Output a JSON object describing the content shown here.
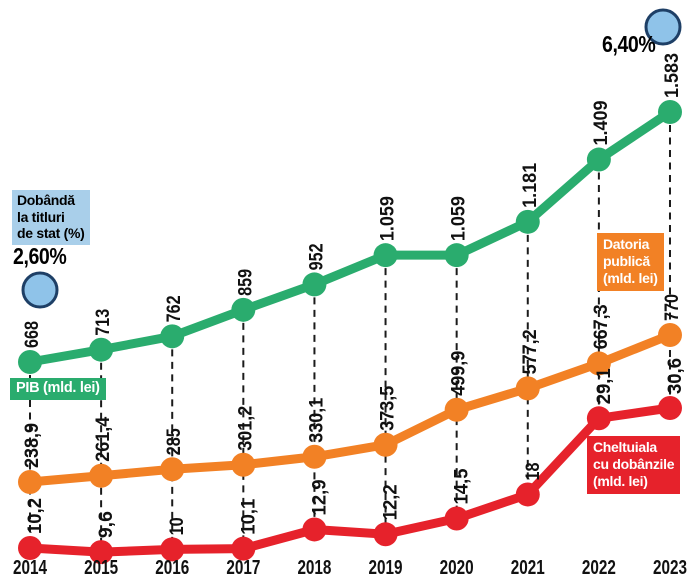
{
  "chart_data": {
    "type": "line",
    "title": "",
    "categories": [
      "2014",
      "2015",
      "2016",
      "2017",
      "2018",
      "2019",
      "2020",
      "2021",
      "2022",
      "2023"
    ],
    "grid": "vertical-dashed",
    "legend_position": "inline-colored-boxes",
    "series": [
      {
        "key": "pib",
        "name": "PIB (mld. lei)",
        "color": "#2aac6e",
        "values": [
          668,
          713,
          762,
          859,
          952,
          1059,
          1059,
          1181,
          1409,
          1583
        ],
        "labels": [
          "668",
          "713",
          "762",
          "859",
          "952",
          "1.059",
          "1.059",
          "1.181",
          "1.409",
          "1.583"
        ]
      },
      {
        "key": "datoria",
        "name": "Datoria publică (mld. lei)",
        "color": "#f28125",
        "values": [
          238.9,
          261.4,
          285,
          301.2,
          330.1,
          373.5,
          499.9,
          577.2,
          667.3,
          770
        ],
        "labels": [
          "238,9",
          "261,4",
          "285",
          "301,2",
          "330,1",
          "373,5",
          "499,9",
          "577,2",
          "667,3",
          "770"
        ]
      },
      {
        "key": "cheltuiala",
        "name": "Cheltuiala cu dobânzile (mld. lei)",
        "color": "#e6222b",
        "values": [
          10.2,
          9.6,
          10,
          10.1,
          12.9,
          12.2,
          14.5,
          18,
          29.1,
          30.6
        ],
        "labels": [
          "10,2",
          "9,6",
          "10",
          "10,1",
          "12,9",
          "12,2",
          "14,5",
          "18",
          "29,1",
          "30,6"
        ]
      }
    ],
    "rate_series": {
      "name": "Dobândă la titluri de stat (%)",
      "fill": "#8fc3e9",
      "stroke": "#1e3f66",
      "points": [
        {
          "year": "2014",
          "value": 2.6,
          "label": "2,60%"
        },
        {
          "year": "2023",
          "value": 6.4,
          "label": "6,40%"
        }
      ]
    }
  },
  "boxes": {
    "rate": "Dobândă\nla titluri\nde stat (%)",
    "pib": "PIB (mld. lei)",
    "datoria": "Datoria\npublică\n(mld. lei)",
    "cheltuiala": "Cheltuiala\ncu dobânzile\n(mld. lei)"
  },
  "rate_labels": {
    "y2014": "2,60%",
    "y2023": "6,40%"
  },
  "colors": {
    "pib": "#2aac6e",
    "datoria": "#f28125",
    "cheltuiala": "#e6222b",
    "rate_fill": "#8fc3e9",
    "rate_stroke": "#1e3f66",
    "rate_box_bg": "#a9cfea",
    "dash": "#1b1b1b",
    "text": "#111111"
  }
}
